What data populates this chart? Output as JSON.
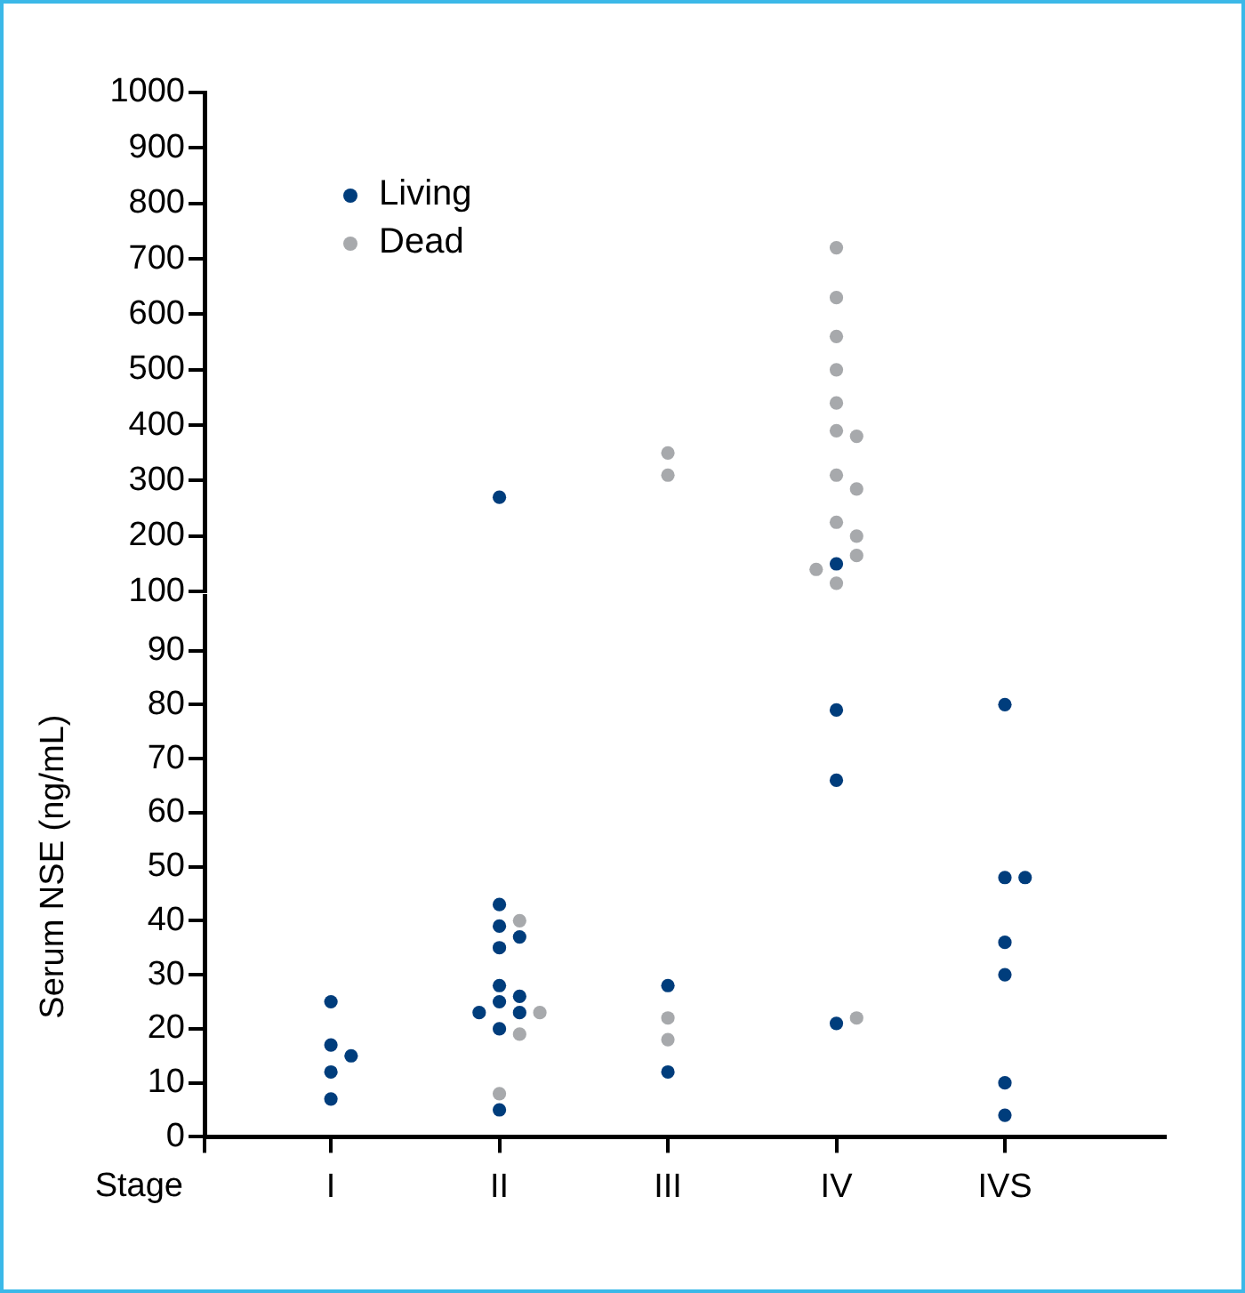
{
  "chart_data": [
    {
      "type": "scatter",
      "categories": [
        "I",
        "II",
        "III",
        "IV",
        "IVS"
      ],
      "ylim": [
        100,
        1000
      ],
      "yticks": [
        100,
        200,
        300,
        400,
        500,
        600,
        700,
        800,
        900,
        1000
      ],
      "tick_labels": "y",
      "legend": "top left",
      "marker": "circle",
      "series": [
        {
          "name": "Living",
          "color": "#003d7c",
          "x": [
            "II",
            "IV"
          ],
          "values": [
            270,
            150
          ]
        },
        {
          "name": "Dead",
          "color": "#a7a9ac",
          "x": [
            "III",
            "III",
            "IV",
            "IV",
            "IV",
            "IV",
            "IV",
            "IV",
            "IV",
            "IV",
            "IV",
            "IV",
            "IV",
            "IV",
            "IV",
            "IV"
          ],
          "values": [
            350,
            310,
            720,
            630,
            560,
            500,
            440,
            390,
            380,
            310,
            285,
            225,
            200,
            165,
            140,
            115
          ]
        }
      ]
    },
    {
      "type": "scatter",
      "xlabel": "Stage",
      "ylabel": "Serum NSE (ng/mL)",
      "categories": [
        "I",
        "II",
        "III",
        "IV",
        "IVS"
      ],
      "ylim": [
        0,
        100
      ],
      "yticks": [
        0,
        10,
        20,
        30,
        40,
        50,
        60,
        70,
        80,
        90
      ],
      "marker": "circle",
      "series": [
        {
          "color": "#003d7c",
          "x": [
            "I",
            "I",
            "I",
            "I",
            "I",
            "II",
            "II",
            "II",
            "II",
            "II",
            "II",
            "II",
            "II",
            "II",
            "II",
            "II",
            "III",
            "III",
            "IV",
            "IV",
            "IV",
            "IVS",
            "IVS",
            "IVS",
            "IVS",
            "IVS",
            "IVS",
            "IVS"
          ],
          "values": [
            25,
            17,
            15,
            12,
            7,
            43,
            39,
            37,
            35,
            28,
            25,
            26,
            23,
            23,
            20,
            5,
            28,
            12,
            79,
            66,
            21,
            80,
            48,
            48,
            36,
            30,
            10,
            4
          ]
        },
        {
          "color": "#a7a9ac",
          "x": [
            "II",
            "II",
            "II",
            "II",
            "III",
            "III",
            "IV"
          ],
          "values": [
            40,
            23,
            19,
            8,
            22,
            18,
            22
          ]
        }
      ]
    }
  ]
}
